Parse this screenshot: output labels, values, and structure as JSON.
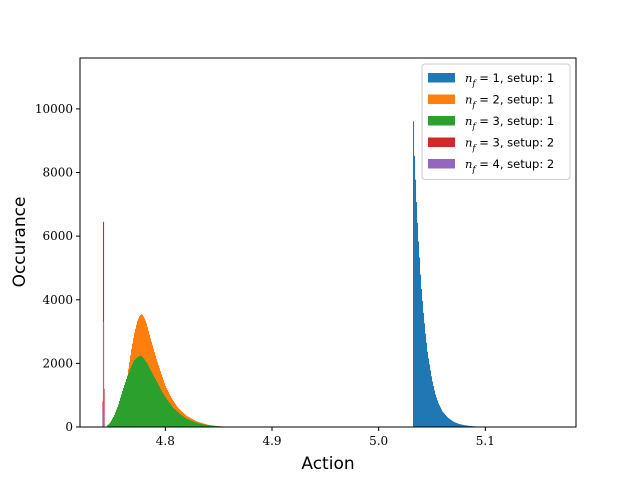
{
  "chart_data": {
    "type": "histogram",
    "xlabel": "Action",
    "ylabel": "Occurance",
    "xlim": [
      4.72,
      5.185
    ],
    "ylim": [
      0,
      11600
    ],
    "xticks": [
      4.8,
      4.9,
      5.0,
      5.1
    ],
    "xtick_labels": [
      "4.8",
      "4.9",
      "5.0",
      "5.1"
    ],
    "yticks": [
      0,
      2000,
      4000,
      6000,
      8000,
      10000
    ],
    "ytick_labels": [
      "0",
      "2000",
      "4000",
      "6000",
      "8000",
      "10000"
    ],
    "legend_position": "top-right",
    "series": [
      {
        "name": "n_f = 1, setup: 1",
        "legend_math": "n",
        "legend_sub": "f",
        "legend_rest": " = 1, setup:  1",
        "color": "#1f77b4",
        "x": [
          5.032,
          5.0325,
          5.033,
          5.0335,
          5.034,
          5.035,
          5.036,
          5.037,
          5.038,
          5.039,
          5.04,
          5.042,
          5.044,
          5.046,
          5.048,
          5.05,
          5.053,
          5.056,
          5.06,
          5.065,
          5.07,
          5.075,
          5.08,
          5.085,
          5.09,
          5.095,
          5.1,
          5.11
        ],
        "y": [
          10500,
          9800,
          9200,
          8600,
          8200,
          7400,
          6700,
          6000,
          5500,
          4900,
          4400,
          3600,
          2900,
          2300,
          1900,
          1500,
          1050,
          750,
          480,
          290,
          170,
          100,
          60,
          35,
          20,
          12,
          6,
          0
        ]
      },
      {
        "name": "n_f = 2, setup: 1",
        "legend_math": "n",
        "legend_sub": "f",
        "legend_rest": " = 2, setup:  1",
        "color": "#ff7f0e",
        "x": [
          4.755,
          4.76,
          4.764,
          4.768,
          4.771,
          4.774,
          4.776,
          4.778,
          4.78,
          4.782,
          4.784,
          4.786,
          4.789,
          4.792,
          4.796,
          4.8,
          4.806,
          4.812,
          4.82,
          4.83,
          4.84,
          4.85,
          4.86
        ],
        "y": [
          200,
          700,
          1500,
          2400,
          2950,
          3350,
          3500,
          3550,
          3450,
          3300,
          3050,
          2800,
          2450,
          2100,
          1700,
          1300,
          900,
          600,
          350,
          170,
          70,
          25,
          5
        ]
      },
      {
        "name": "n_f = 3, setup: 1",
        "legend_math": "n",
        "legend_sub": "f",
        "legend_rest": " = 3, setup:  1",
        "color": "#2ca02c",
        "x": [
          4.745,
          4.748,
          4.752,
          4.756,
          4.76,
          4.764,
          4.768,
          4.771,
          4.774,
          4.777,
          4.78,
          4.783,
          4.786,
          4.79,
          4.794,
          4.798,
          4.803,
          4.808,
          4.814,
          4.82,
          4.828,
          4.836,
          4.845,
          4.855,
          4.865
        ],
        "y": [
          30,
          120,
          350,
          700,
          1150,
          1550,
          1900,
          2100,
          2200,
          2250,
          2150,
          2000,
          1800,
          1550,
          1300,
          1050,
          800,
          580,
          400,
          260,
          150,
          80,
          35,
          12,
          3
        ]
      },
      {
        "name": "n_f = 3, setup: 2",
        "legend_math": "n",
        "legend_sub": "f",
        "legend_rest": " = 3, setup:  2",
        "color": "#d62728",
        "x": [
          4.7415,
          4.742,
          4.7425
        ],
        "y": [
          800,
          6450,
          1200
        ]
      },
      {
        "name": "n_f = 4, setup: 2",
        "legend_math": "n",
        "legend_sub": "f",
        "legend_rest": " = 4, setup:  2",
        "color": "#9467bd",
        "x": [
          4.7415,
          4.742
        ],
        "y": [
          500,
          3300
        ]
      }
    ]
  }
}
